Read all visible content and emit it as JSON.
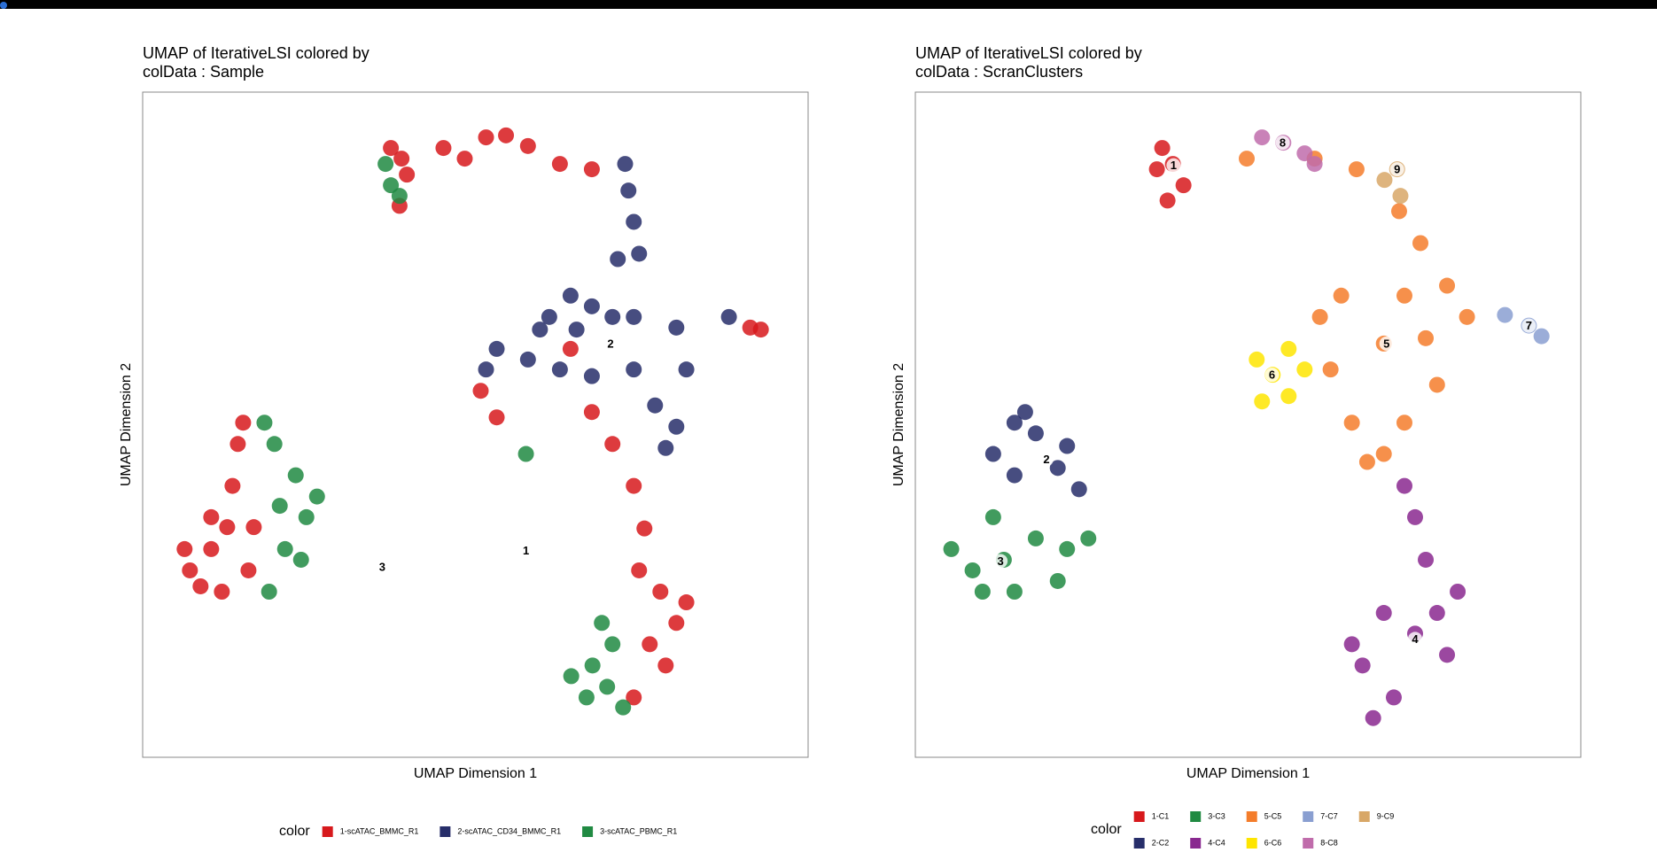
{
  "chart_data": [
    {
      "type": "scatter",
      "title": [
        "UMAP of IterativeLSI  colored by",
        "colData :  Sample"
      ],
      "xlabel": "UMAP Dimension 1",
      "ylabel": "UMAP Dimension 2",
      "xlim": [
        0,
        100
      ],
      "ylim": [
        0,
        100
      ],
      "legend_title": "color",
      "legend_position": "bottom",
      "legend_rows": 1,
      "series": [
        {
          "name": "1-scATAC_BMMC_R1",
          "color": "#d7191c",
          "x": [
            38.9,
            37.3,
            39.7,
            38.6,
            45.2,
            51.6,
            54.6,
            57.9,
            62.7,
            67.5,
            48.4,
            92.9,
            91.3,
            50.8,
            53.2,
            64.3,
            67.5,
            70.6,
            73.8,
            75.4,
            77.8,
            80.2,
            76.2,
            78.6,
            81.7,
            74.6,
            73.8,
            7.1,
            10.3,
            12.7,
            13.5,
            14.3,
            15.1,
            8.7,
            11.9,
            6.3,
            15.9,
            16.7,
            10.3
          ],
          "y": [
            90,
            91.6,
            87.6,
            82.9,
            91.6,
            93.2,
            93.5,
            91.9,
            89.2,
            88.4,
            90,
            64.3,
            64.6,
            55.1,
            51.1,
            61.4,
            51.9,
            47.1,
            40.8,
            34.4,
            24.9,
            20.2,
            17,
            13.8,
            23.3,
            28.1,
            9,
            28.1,
            31.3,
            34.6,
            40.8,
            47.1,
            50.3,
            25.7,
            24.9,
            31.3,
            28.1,
            34.6,
            36.1
          ]
        },
        {
          "name": "2-scATAC_CD34_BMMC_R1",
          "color": "#272e6a",
          "x": [
            72.5,
            73,
            73.8,
            74.6,
            71.4,
            64.3,
            61.1,
            67.5,
            70.6,
            73.8,
            80.2,
            88.1,
            53.2,
            51.6,
            57.9,
            62.7,
            73.8,
            77,
            80.2,
            78.6,
            67.5,
            59.7,
            81.7,
            65.2
          ],
          "y": [
            89.2,
            85.2,
            80.5,
            75.7,
            74.9,
            69.4,
            66.2,
            67.8,
            66.2,
            66.2,
            64.6,
            66.2,
            61.4,
            58.3,
            59.8,
            58.3,
            58.3,
            52.9,
            49.7,
            46.5,
            57.3,
            64.3,
            58.3,
            64.3
          ]
        },
        {
          "name": "3-scATAC_PBMC_R1",
          "color": "#208a42",
          "x": [
            36.5,
            37.3,
            38.6,
            57.6,
            67.6,
            64.4,
            69.8,
            72.2,
            66.7,
            70.6,
            69,
            19.8,
            23,
            24.6,
            21.4,
            19,
            18.3,
            26.2,
            20.6,
            23.8
          ],
          "y": [
            89.2,
            86,
            84.4,
            45.6,
            13.8,
            12.2,
            10.6,
            7.5,
            9,
            17,
            20.2,
            47.1,
            42.4,
            36.1,
            31.3,
            24.9,
            50.3,
            39.2,
            37.8,
            29.7
          ]
        }
      ],
      "annotations": [
        {
          "text": "1",
          "x": 57.6,
          "y": 31.1
        },
        {
          "text": "2",
          "x": 70.3,
          "y": 62.2
        },
        {
          "text": "3",
          "x": 36,
          "y": 28.6
        }
      ]
    },
    {
      "type": "scatter",
      "title": [
        "UMAP of IterativeLSI  colored by",
        "colData :  ScranClusters"
      ],
      "xlabel": "UMAP Dimension 1",
      "ylabel": "UMAP Dimension 2",
      "xlim": [
        0,
        100
      ],
      "ylim": [
        0,
        100
      ],
      "legend_title": "color",
      "legend_position": "bottom",
      "legend_rows": 2,
      "series": [
        {
          "name": "1-C1",
          "color": "#d7191c",
          "x": [
            38.7,
            37.1,
            40.3,
            37.9,
            36.3
          ],
          "y": [
            89.2,
            91.6,
            86,
            83.7,
            88.4
          ]
        },
        {
          "name": "2-C2",
          "color": "#272e6a",
          "x": [
            18.1,
            14.9,
            21.4,
            24.6,
            16.5,
            11.7,
            22.8,
            14.9
          ],
          "y": [
            48.7,
            50.3,
            43.5,
            40.3,
            51.9,
            45.6,
            46.8,
            42.4
          ]
        },
        {
          "name": "3-C3",
          "color": "#208a42",
          "x": [
            13.3,
            8.6,
            5.4,
            18.1,
            22.8,
            26,
            14.9,
            10.1,
            21.4,
            11.7
          ],
          "y": [
            29.7,
            28.1,
            31.3,
            32.9,
            31.3,
            32.9,
            24.9,
            24.9,
            26.5,
            36.1
          ]
        },
        {
          "name": "4-C4",
          "color": "#89288f",
          "x": [
            75.1,
            67.2,
            71.9,
            79.9,
            81.5,
            76.7,
            75.1,
            73.5,
            65.6,
            70.4,
            78.4,
            68.8
          ],
          "y": [
            18.6,
            13.8,
            9,
            15.4,
            24.9,
            29.7,
            36.1,
            40.8,
            17,
            21.7,
            21.7,
            5.9
          ]
        },
        {
          "name": "5-C5",
          "color": "#f47d2b",
          "x": [
            70.4,
            64,
            73.5,
            62.4,
            65.6,
            73.5,
            78.4,
            60.8,
            70.4,
            76.7,
            82.9,
            75.9,
            72.7,
            66.3,
            60,
            49.8,
            67.9,
            79.9
          ],
          "y": [
            62.2,
            69.4,
            69.4,
            58.3,
            50.3,
            50.3,
            56,
            66.2,
            45.6,
            63,
            66.2,
            77.3,
            82.1,
            88.4,
            90,
            90,
            44.4,
            70.9
          ]
        },
        {
          "name": "6-C6",
          "color": "#fee500",
          "x": [
            53.7,
            51.3,
            56.1,
            52.1,
            56.1,
            58.5
          ],
          "y": [
            57.5,
            59.8,
            61.4,
            53.5,
            54.3,
            58.3
          ]
        },
        {
          "name": "7-C7",
          "color": "#8a9fd1",
          "x": [
            92.2,
            88.6,
            94.1
          ],
          "y": [
            64.9,
            66.5,
            63.3
          ]
        },
        {
          "name": "8-C8",
          "color": "#c06cab",
          "x": [
            55.3,
            52.1,
            58.5,
            60
          ],
          "y": [
            92.4,
            93.2,
            90.8,
            89.2
          ]
        },
        {
          "name": "9-C9",
          "color": "#d8a767",
          "x": [
            72.4,
            70.5,
            72.9
          ],
          "y": [
            88.4,
            86.8,
            84.4
          ]
        }
      ],
      "annotations": [
        {
          "text": "1",
          "x": 38.8,
          "y": 89
        },
        {
          "text": "2",
          "x": 19.7,
          "y": 44.8
        },
        {
          "text": "3",
          "x": 12.8,
          "y": 29.5
        },
        {
          "text": "4",
          "x": 75.1,
          "y": 17.8
        },
        {
          "text": "5",
          "x": 70.8,
          "y": 62.2
        },
        {
          "text": "6",
          "x": 53.6,
          "y": 57.5
        },
        {
          "text": "7",
          "x": 92.2,
          "y": 64.9
        },
        {
          "text": "8",
          "x": 55.2,
          "y": 92.4
        },
        {
          "text": "9",
          "x": 72.4,
          "y": 88.4
        }
      ]
    }
  ]
}
